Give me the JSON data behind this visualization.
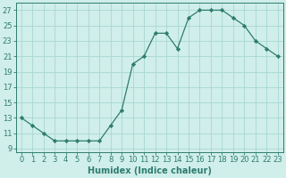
{
  "x": [
    0,
    1,
    2,
    3,
    4,
    5,
    6,
    7,
    8,
    9,
    10,
    11,
    12,
    13,
    14,
    15,
    16,
    17,
    18,
    19,
    20,
    21,
    22,
    23
  ],
  "y": [
    13,
    12,
    11,
    10,
    10,
    10,
    10,
    10,
    12,
    14,
    20,
    21,
    24,
    24,
    22,
    26,
    27,
    27,
    27,
    26,
    25,
    23,
    22,
    21
  ],
  "line_color": "#2e7d6e",
  "marker_color": "#2e7d6e",
  "bg_color": "#d0eeea",
  "grid_color": "#a8d8d2",
  "xlabel": "Humidex (Indice chaleur)",
  "xlim": [
    -0.5,
    23.5
  ],
  "ylim": [
    8.5,
    28
  ],
  "yticks": [
    9,
    11,
    13,
    15,
    17,
    19,
    21,
    23,
    25,
    27
  ],
  "xticks": [
    0,
    1,
    2,
    3,
    4,
    5,
    6,
    7,
    8,
    9,
    10,
    11,
    12,
    13,
    14,
    15,
    16,
    17,
    18,
    19,
    20,
    21,
    22,
    23
  ],
  "tick_color": "#2e7d6e",
  "label_color": "#2e7d6e",
  "font_size_axis": 7,
  "font_size_tick": 6
}
